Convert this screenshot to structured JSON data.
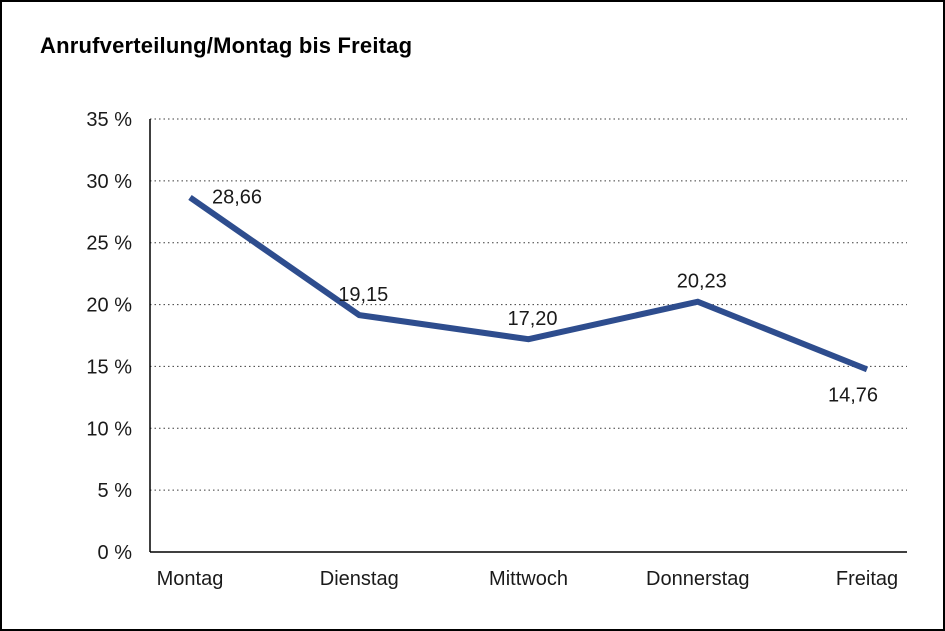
{
  "chart_data": {
    "type": "line",
    "title": "Anrufverteilung/Montag bis Freitag",
    "categories": [
      "Montag",
      "Dienstag",
      "Mittwoch",
      "Donnerstag",
      "Freitag"
    ],
    "values": [
      28.66,
      19.15,
      17.2,
      20.23,
      14.76
    ],
    "value_labels": [
      "28,66",
      "19,15",
      "17,20",
      "20,23",
      "14,76"
    ],
    "label_positions": [
      "right",
      "above",
      "above",
      "above",
      "below"
    ],
    "xlabel": "",
    "ylabel": "",
    "ylim": [
      0,
      35
    ],
    "ytick_step": 5,
    "ytick_labels": [
      "0 %",
      "5 %",
      "10 %",
      "15 %",
      "20 %",
      "25 %",
      "30 %",
      "35 %"
    ],
    "grid": "horizontal-dotted",
    "legend": "none",
    "line_color": "#2e4d8e",
    "axis_color": "#000000",
    "gridline_color": "#3c3c3c",
    "background_color": "#ffffff"
  }
}
